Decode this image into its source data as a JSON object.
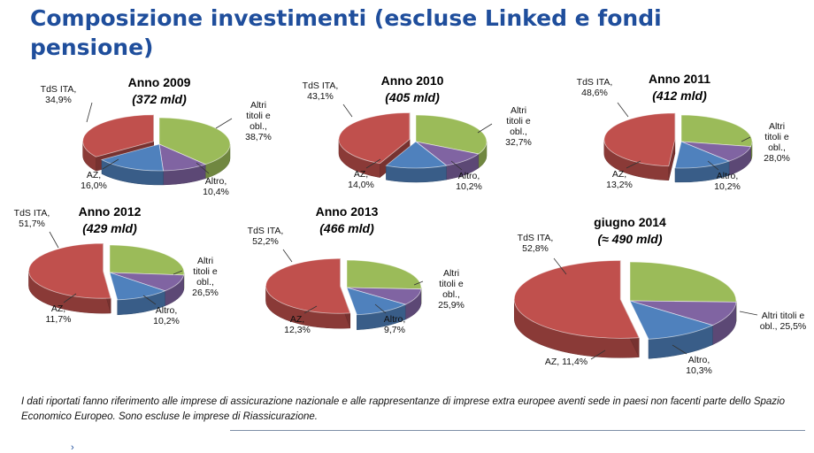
{
  "title": "Composizione investimenti (escluse Linked e fondi pensione)",
  "colors": {
    "tds": "#c0504d",
    "altri": "#9bbb59",
    "altro": "#8064a2",
    "az": "#4f81bd",
    "title": "#1f4e9c"
  },
  "chart_data": [
    {
      "type": "pie",
      "title": "Anno 2009",
      "subtitle": "(372 mld)",
      "slices": [
        {
          "name": "TdS ITA",
          "label": "TdS ITA,|34,9%",
          "value": 34.9,
          "color": "#c0504d"
        },
        {
          "name": "Altri titoli e obl.",
          "label": "Altri|titoli e|obl.,|38,7%",
          "value": 38.7,
          "color": "#9bbb59"
        },
        {
          "name": "Altro",
          "label": "Altro,|10,4%",
          "value": 10.4,
          "color": "#8064a2"
        },
        {
          "name": "AZ",
          "label": "AZ,|16,0%",
          "value": 16.0,
          "color": "#4f81bd"
        }
      ]
    },
    {
      "type": "pie",
      "title": "Anno 2010",
      "subtitle": "(405 mld)",
      "slices": [
        {
          "name": "TdS ITA",
          "label": "TdS ITA,|43,1%",
          "value": 43.1,
          "color": "#c0504d"
        },
        {
          "name": "Altri titoli e obl.",
          "label": "Altri|titoli e|obl.,|32,7%",
          "value": 32.7,
          "color": "#9bbb59"
        },
        {
          "name": "Altro",
          "label": "Altro,|10,2%",
          "value": 10.2,
          "color": "#8064a2"
        },
        {
          "name": "AZ",
          "label": "AZ,|14,0%",
          "value": 14.0,
          "color": "#4f81bd"
        }
      ]
    },
    {
      "type": "pie",
      "title": "Anno 2011",
      "subtitle": "(412 mld)",
      "slices": [
        {
          "name": "TdS ITA",
          "label": "TdS ITA,|48,6%",
          "value": 48.6,
          "color": "#c0504d"
        },
        {
          "name": "Altri titoli e obl.",
          "label": "Altri|titoli e|obl.,|28,0%",
          "value": 28.0,
          "color": "#9bbb59"
        },
        {
          "name": "Altro",
          "label": "Altro,|10,2%",
          "value": 10.2,
          "color": "#8064a2"
        },
        {
          "name": "AZ",
          "label": "AZ,|13,2%",
          "value": 13.2,
          "color": "#4f81bd"
        }
      ]
    },
    {
      "type": "pie",
      "title": "Anno 2012",
      "subtitle": "(429 mld)",
      "slices": [
        {
          "name": "TdS ITA",
          "label": "TdS ITA,|51,7%",
          "value": 51.7,
          "color": "#c0504d"
        },
        {
          "name": "Altri titoli e obl.",
          "label": "Altri|titoli e|obl.,|26,5%",
          "value": 26.5,
          "color": "#9bbb59"
        },
        {
          "name": "Altro",
          "label": "Altro,|10,2%",
          "value": 10.2,
          "color": "#8064a2"
        },
        {
          "name": "AZ",
          "label": "AZ,|11,7%",
          "value": 11.7,
          "color": "#4f81bd"
        }
      ]
    },
    {
      "type": "pie",
      "title": "Anno 2013",
      "subtitle": "(466 mld)",
      "slices": [
        {
          "name": "TdS ITA",
          "label": "TdS ITA,|52,2%",
          "value": 52.2,
          "color": "#c0504d"
        },
        {
          "name": "Altri titoli e obl.",
          "label": "Altri|titoli e|obl.,|25,9%",
          "value": 25.9,
          "color": "#9bbb59"
        },
        {
          "name": "Altro",
          "label": "Altro,|9,7%",
          "value": 9.7,
          "color": "#8064a2"
        },
        {
          "name": "AZ",
          "label": "AZ,|12,3%",
          "value": 12.3,
          "color": "#4f81bd"
        }
      ]
    },
    {
      "type": "pie",
      "title": "giugno 2014",
      "subtitle": "(≈ 490 mld)",
      "slices": [
        {
          "name": "TdS ITA",
          "label": "TdS ITA,|52,8%",
          "value": 52.8,
          "color": "#c0504d"
        },
        {
          "name": "Altri titoli e obl.",
          "label": "Altri titoli e|obl., 25,5%",
          "value": 25.5,
          "color": "#9bbb59"
        },
        {
          "name": "Altro",
          "label": "Altro,|10,3%",
          "value": 10.3,
          "color": "#8064a2"
        },
        {
          "name": "AZ",
          "label": "AZ, 11,4%",
          "value": 11.4,
          "color": "#4f81bd"
        }
      ]
    }
  ],
  "footnote": "I dati riportati fanno riferimento alle imprese di assicurazione nazionale e alle rappresentanze di imprese extra europee aventi sede in paesi non facenti parte dello Spazio Economico Europeo. Sono escluse le imprese di Riassicurazione."
}
